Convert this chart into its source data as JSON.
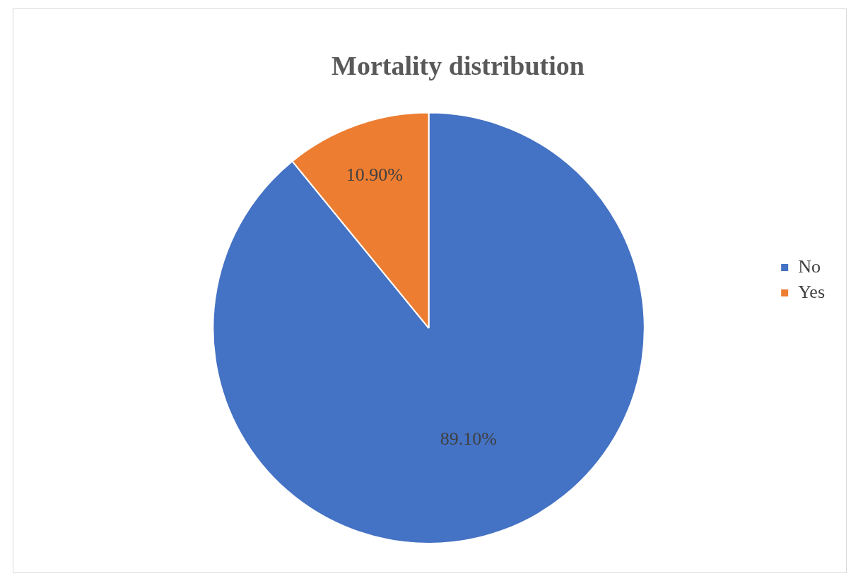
{
  "chart_data": {
    "type": "pie",
    "title": "Mortality distribution",
    "categories": [
      "No",
      "Yes"
    ],
    "values": [
      89.1,
      10.9
    ],
    "colors": [
      "#4472c4",
      "#ed7d31"
    ],
    "value_labels": [
      "89.10%",
      "10.90%"
    ],
    "legend": "right"
  }
}
